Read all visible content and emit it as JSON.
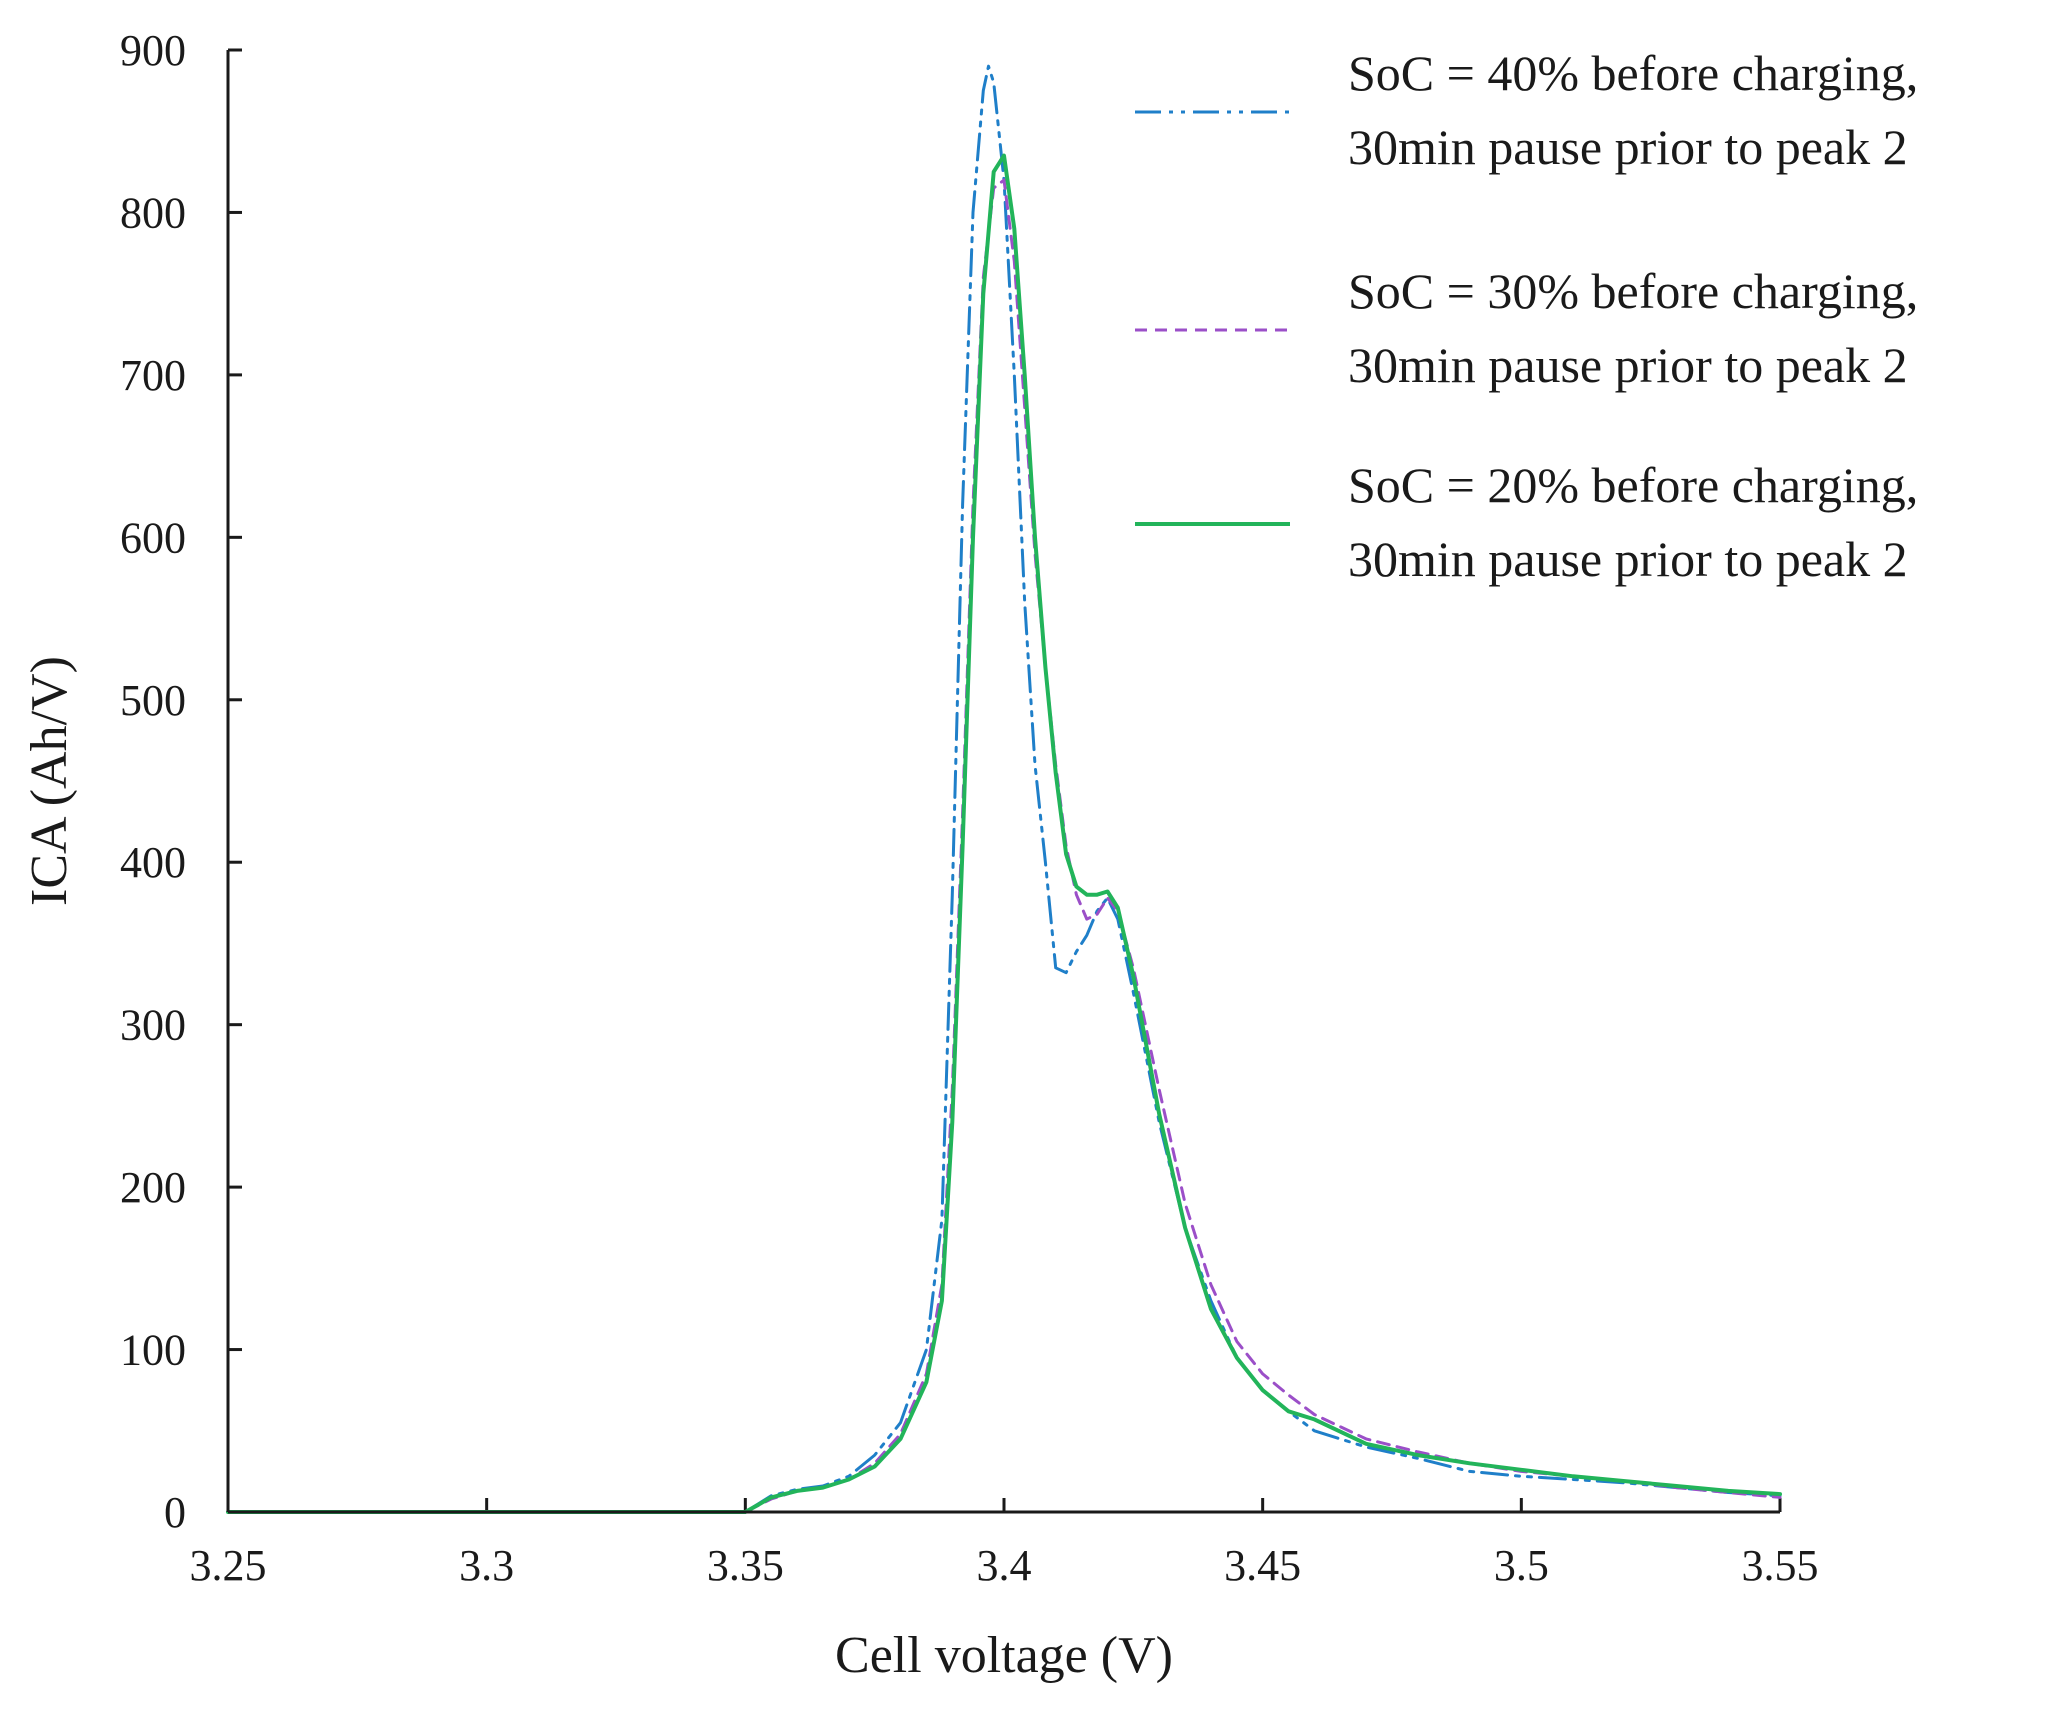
{
  "chart_data": {
    "type": "line",
    "title": "",
    "xlabel": "Cell voltage (V)",
    "ylabel": "ICA (Ah/V)",
    "xlim": [
      3.25,
      3.55
    ],
    "ylim": [
      0,
      900
    ],
    "grid": false,
    "legend_position": "top-right",
    "x_ticks": [
      "3.25",
      "3.3",
      "3.35",
      "3.4",
      "3.45",
      "3.5",
      "3.55"
    ],
    "y_ticks": [
      "0",
      "100",
      "200",
      "300",
      "400",
      "500",
      "600",
      "700",
      "800",
      "900"
    ],
    "x_tick_values": [
      3.25,
      3.3,
      3.35,
      3.4,
      3.45,
      3.5,
      3.55
    ],
    "y_tick_values": [
      0,
      100,
      200,
      300,
      400,
      500,
      600,
      700,
      800,
      900
    ],
    "series": [
      {
        "name_line1": "SoC = 40% before charging,",
        "name_line2": "30min pause prior to peak 2",
        "color": "#1f7fc9",
        "style": "dash-dot-dot",
        "x": [
          3.25,
          3.3,
          3.35,
          3.355,
          3.36,
          3.365,
          3.37,
          3.375,
          3.38,
          3.385,
          3.388,
          3.39,
          3.392,
          3.394,
          3.396,
          3.397,
          3.398,
          3.4,
          3.402,
          3.404,
          3.406,
          3.408,
          3.41,
          3.412,
          3.414,
          3.416,
          3.418,
          3.42,
          3.422,
          3.425,
          3.43,
          3.435,
          3.44,
          3.445,
          3.45,
          3.455,
          3.46,
          3.47,
          3.48,
          3.49,
          3.5,
          3.51,
          3.52,
          3.53,
          3.54,
          3.55
        ],
        "y": [
          0,
          0,
          0,
          10,
          14,
          16,
          22,
          35,
          55,
          100,
          180,
          380,
          620,
          800,
          875,
          890,
          880,
          820,
          700,
          560,
          460,
          400,
          335,
          332,
          345,
          355,
          370,
          378,
          365,
          320,
          240,
          175,
          130,
          95,
          75,
          62,
          50,
          40,
          33,
          25,
          22,
          20,
          18,
          15,
          12,
          10
        ]
      },
      {
        "name_line1": "SoC = 30% before charging,",
        "name_line2": "30min pause prior to peak 2",
        "color": "#9b4fc8",
        "style": "dashed",
        "x": [
          3.25,
          3.3,
          3.35,
          3.355,
          3.36,
          3.365,
          3.37,
          3.375,
          3.38,
          3.385,
          3.388,
          3.39,
          3.392,
          3.394,
          3.396,
          3.398,
          3.4,
          3.402,
          3.404,
          3.406,
          3.408,
          3.41,
          3.412,
          3.414,
          3.416,
          3.418,
          3.42,
          3.422,
          3.425,
          3.43,
          3.435,
          3.44,
          3.445,
          3.45,
          3.455,
          3.46,
          3.47,
          3.48,
          3.49,
          3.5,
          3.51,
          3.52,
          3.53,
          3.54,
          3.55
        ],
        "y": [
          0,
          0,
          0,
          8,
          13,
          15,
          20,
          30,
          48,
          85,
          140,
          260,
          430,
          620,
          760,
          815,
          820,
          770,
          680,
          590,
          520,
          460,
          410,
          380,
          365,
          368,
          378,
          370,
          335,
          260,
          190,
          140,
          105,
          85,
          72,
          60,
          45,
          37,
          30,
          25,
          22,
          19,
          15,
          12,
          9
        ]
      },
      {
        "name_line1": "SoC = 20% before charging,",
        "name_line2": "30min pause prior to peak 2",
        "color": "#22b45a",
        "style": "solid",
        "x": [
          3.25,
          3.3,
          3.35,
          3.355,
          3.36,
          3.365,
          3.37,
          3.375,
          3.38,
          3.385,
          3.388,
          3.39,
          3.392,
          3.394,
          3.396,
          3.398,
          3.4,
          3.402,
          3.404,
          3.406,
          3.408,
          3.41,
          3.412,
          3.414,
          3.416,
          3.418,
          3.42,
          3.422,
          3.425,
          3.43,
          3.435,
          3.44,
          3.445,
          3.45,
          3.455,
          3.46,
          3.47,
          3.48,
          3.49,
          3.5,
          3.51,
          3.52,
          3.53,
          3.54,
          3.55
        ],
        "y": [
          0,
          0,
          0,
          9,
          13,
          15,
          20,
          28,
          45,
          80,
          130,
          240,
          410,
          600,
          750,
          825,
          835,
          790,
          700,
          600,
          520,
          455,
          405,
          385,
          380,
          380,
          382,
          372,
          330,
          245,
          175,
          125,
          95,
          75,
          62,
          57,
          42,
          35,
          30,
          26,
          22,
          19,
          16,
          13,
          11
        ]
      }
    ]
  }
}
